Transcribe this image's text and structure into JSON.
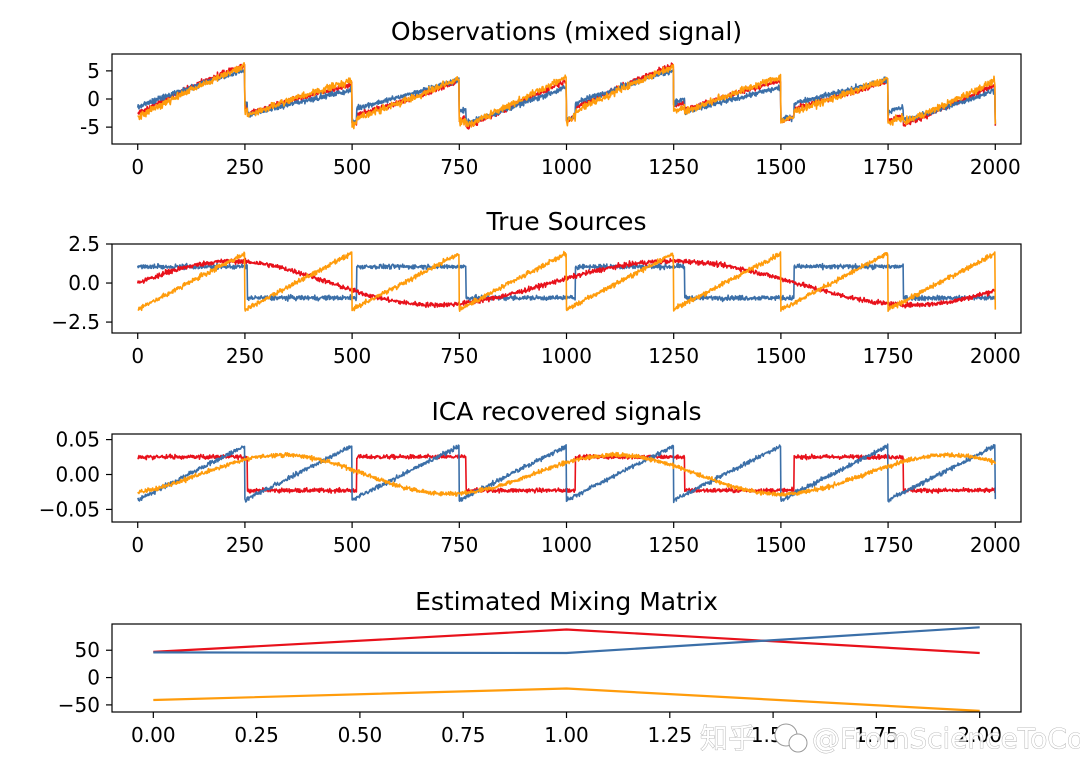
{
  "watermark": {
    "left_text": "知乎",
    "right_text": "@FromScienceToCode 测试科研"
  },
  "colors": {
    "red": "#e8111b",
    "blue": "#3b6fa8",
    "orange": "#ff9c0c"
  },
  "chart_data": [
    {
      "type": "line",
      "title": "Observations (mixed signal)",
      "xlim": [
        -60,
        2060
      ],
      "ylim": [
        -8,
        8
      ],
      "xticks": [
        0,
        250,
        500,
        750,
        1000,
        1250,
        1500,
        1750,
        2000
      ],
      "yticks": [
        5,
        0,
        -5
      ],
      "series": [
        {
          "color": "#e8111b",
          "kind": "obs_red",
          "noise": 0.8
        },
        {
          "color": "#3b6fa8",
          "kind": "obs_blue",
          "noise": 0.8
        },
        {
          "color": "#ff9c0c",
          "kind": "obs_orange",
          "noise": 1.0
        }
      ]
    },
    {
      "type": "line",
      "title": "True Sources",
      "xlim": [
        -60,
        2060
      ],
      "ylim": [
        -3.2,
        2.5
      ],
      "xticks": [
        0,
        250,
        500,
        750,
        1000,
        1250,
        1500,
        1750,
        2000
      ],
      "yticks": [
        2.5,
        0.0,
        -2.5
      ],
      "ytick_labels": [
        "2.5",
        "0.0",
        "−2.5"
      ],
      "series": [
        {
          "color": "#3b6fa8",
          "kind": "square",
          "noise": 0.25
        },
        {
          "color": "#e8111b",
          "kind": "sine",
          "noise": 0.25
        },
        {
          "color": "#ff9c0c",
          "kind": "sawtooth",
          "noise": 0.25
        }
      ]
    },
    {
      "type": "line",
      "title": "ICA recovered signals",
      "xlim": [
        -60,
        2060
      ],
      "ylim": [
        -0.068,
        0.058
      ],
      "xticks": [
        0,
        250,
        500,
        750,
        1000,
        1250,
        1500,
        1750,
        2000
      ],
      "yticks": [
        0.05,
        0.0,
        -0.05
      ],
      "ytick_labels": [
        "0.05",
        "0.00",
        "−0.05"
      ],
      "series": [
        {
          "color": "#e8111b",
          "kind": "ica_red",
          "noise": 0.005
        },
        {
          "color": "#3b6fa8",
          "kind": "ica_blue",
          "noise": 0.005
        },
        {
          "color": "#ff9c0c",
          "kind": "ica_orange",
          "noise": 0.005
        }
      ]
    },
    {
      "type": "line",
      "title": "Estimated Mixing Matrix",
      "xlim": [
        -0.1,
        2.1
      ],
      "ylim": [
        -63,
        98
      ],
      "xticks": [
        0.0,
        0.25,
        0.5,
        0.75,
        1.0,
        1.25,
        1.5,
        1.75,
        2.0
      ],
      "xtick_labels": [
        "0.00",
        "0.25",
        "0.50",
        "0.75",
        "1.00",
        "1.25",
        "1.50",
        "1.75",
        "2.00"
      ],
      "yticks": [
        50,
        0,
        -50
      ],
      "ytick_labels": [
        "50",
        "0",
        "−50"
      ],
      "x": [
        0,
        1,
        2
      ],
      "series": [
        {
          "color": "#e8111b",
          "values": [
            47,
            88,
            45
          ]
        },
        {
          "color": "#3b6fa8",
          "values": [
            46,
            45,
            92
          ]
        },
        {
          "color": "#ff9c0c",
          "values": [
            -41,
            -20,
            -61
          ]
        }
      ]
    }
  ]
}
